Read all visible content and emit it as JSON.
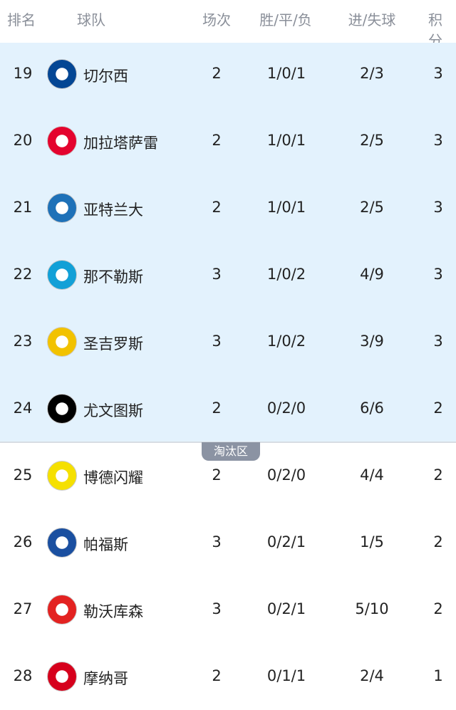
{
  "header": {
    "rank": "排名",
    "team": "球队",
    "played": "场次",
    "wdl": "胜/平/负",
    "goals": "进/失球",
    "points": "积分"
  },
  "zone_label": "淘汰区",
  "rows": [
    {
      "rank": "19",
      "team": "切尔西",
      "played": "2",
      "wdl": "1/0/1",
      "goals": "2/3",
      "points": "3",
      "logo_color": "#034694",
      "logo": "chelsea-logo"
    },
    {
      "rank": "20",
      "team": "加拉塔萨雷",
      "played": "2",
      "wdl": "1/0/1",
      "goals": "2/5",
      "points": "3",
      "logo_color": "#e4032e",
      "logo": "galatasaray-logo"
    },
    {
      "rank": "21",
      "team": "亚特兰大",
      "played": "2",
      "wdl": "1/0/1",
      "goals": "2/5",
      "points": "3",
      "logo_color": "#1e71b8",
      "logo": "atalanta-logo"
    },
    {
      "rank": "22",
      "team": "那不勒斯",
      "played": "3",
      "wdl": "1/0/2",
      "goals": "4/9",
      "points": "3",
      "logo_color": "#12a0d7",
      "logo": "napoli-logo"
    },
    {
      "rank": "23",
      "team": "圣吉罗斯",
      "played": "3",
      "wdl": "1/0/2",
      "goals": "3/9",
      "points": "3",
      "logo_color": "#f2c200",
      "logo": "union-sg-logo"
    },
    {
      "rank": "24",
      "team": "尤文图斯",
      "played": "2",
      "wdl": "0/2/0",
      "goals": "6/6",
      "points": "2",
      "logo_color": "#000000",
      "logo": "juventus-logo"
    },
    {
      "rank": "25",
      "team": "博德闪耀",
      "played": "2",
      "wdl": "0/2/0",
      "goals": "4/4",
      "points": "2",
      "logo_color": "#f5e000",
      "logo": "bodo-glimt-logo"
    },
    {
      "rank": "26",
      "team": "帕福斯",
      "played": "3",
      "wdl": "0/2/1",
      "goals": "1/5",
      "points": "2",
      "logo_color": "#1a4fa0",
      "logo": "pafos-logo"
    },
    {
      "rank": "27",
      "team": "勒沃库森",
      "played": "3",
      "wdl": "0/2/1",
      "goals": "5/10",
      "points": "2",
      "logo_color": "#e32221",
      "logo": "leverkusen-logo"
    },
    {
      "rank": "28",
      "team": "摩纳哥",
      "played": "2",
      "wdl": "0/1/1",
      "goals": "2/4",
      "points": "1",
      "logo_color": "#d6001c",
      "logo": "monaco-logo"
    }
  ]
}
